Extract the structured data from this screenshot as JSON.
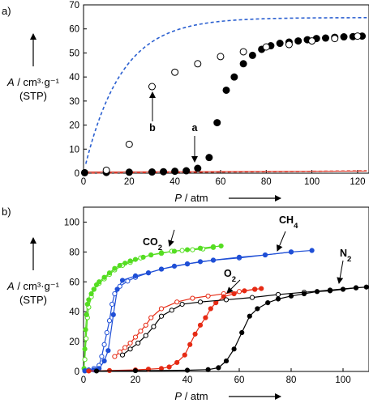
{
  "chart_data": [
    {
      "panel_label": "a)",
      "type": "scatter",
      "xlabel": "P / atm",
      "ylabel": "A / cm³·g⁻¹ (STP)",
      "xlim": [
        0,
        125
      ],
      "ylim": [
        0,
        70
      ],
      "xticks": [
        "0",
        "20",
        "40",
        "60",
        "80",
        "100",
        "120"
      ],
      "yticks": [
        "0",
        "10",
        "20",
        "30",
        "40",
        "50",
        "60",
        "70"
      ],
      "annotations": [
        "a",
        "b"
      ],
      "series": [
        {
          "style": "filled",
          "color": "#000000",
          "annotation": "a",
          "points": [
            [
              0.5,
              0.2
            ],
            [
              10,
              0.3
            ],
            [
              20,
              0.4
            ],
            [
              30,
              0.5
            ],
            [
              35,
              0.6
            ],
            [
              40,
              0.8
            ],
            [
              45,
              1.0
            ],
            [
              50,
              2.0
            ],
            [
              55,
              6.5
            ],
            [
              58.5,
              21
            ],
            [
              62.5,
              34.5
            ],
            [
              66,
              40
            ],
            [
              70,
              45.5
            ],
            [
              74,
              49
            ],
            [
              78,
              51.5
            ],
            [
              82,
              53
            ],
            [
              86,
              54
            ],
            [
              90,
              54.5
            ],
            [
              94,
              55
            ],
            [
              98,
              55.5
            ],
            [
              102,
              56
            ],
            [
              106,
              56.2
            ],
            [
              110,
              56.5
            ],
            [
              114,
              56.7
            ],
            [
              118,
              56.8
            ],
            [
              122,
              57
            ]
          ]
        },
        {
          "style": "open",
          "color": "#000000",
          "annotation": "b",
          "points": [
            [
              10,
              1.2
            ],
            [
              20,
              12
            ],
            [
              30,
              36
            ],
            [
              40,
              42
            ],
            [
              50,
              45.5
            ],
            [
              60,
              48.5
            ],
            [
              70,
              50.5
            ],
            [
              80,
              52.5
            ],
            [
              90,
              53.5
            ],
            [
              100,
              55
            ],
            [
              110,
              56
            ],
            [
              120,
              57
            ]
          ]
        },
        {
          "style": "dashed-fit",
          "color": "#2a5fd0",
          "curve": {
            "qmax": 64.7,
            "k": 0.062,
            "x_from": 1,
            "x_to": 124
          }
        },
        {
          "style": "dashed-fit",
          "color": "#d93020",
          "curve": {
            "slope": 0.008,
            "x_from": 1,
            "x_to": 124
          }
        }
      ]
    },
    {
      "panel_label": "b)",
      "type": "line",
      "xlabel": "P / atm",
      "ylabel": "A / cm³·g⁻¹ (STP)",
      "xlim": [
        0,
        110
      ],
      "ylim": [
        0,
        110
      ],
      "xticks": [
        "0",
        "20",
        "40",
        "60",
        "80",
        "100"
      ],
      "yticks": [
        "0",
        "20",
        "40",
        "60",
        "80",
        "100"
      ],
      "series": [
        {
          "name": "CO2",
          "color": "#55dd22",
          "adsorption": [
            [
              0.2,
              2
            ],
            [
              0.5,
              15
            ],
            [
              0.8,
              28
            ],
            [
              1.2,
              38
            ],
            [
              1.5,
              45
            ],
            [
              2,
              48
            ],
            [
              3,
              52
            ],
            [
              4,
              55
            ],
            [
              5,
              58
            ],
            [
              6,
              60
            ],
            [
              8,
              63
            ],
            [
              10,
              66
            ],
            [
              12,
              69
            ],
            [
              14,
              71
            ],
            [
              16,
              72.5
            ],
            [
              18,
              74
            ],
            [
              20,
              75
            ],
            [
              23,
              76.5
            ],
            [
              26,
              78
            ],
            [
              30,
              79.5
            ],
            [
              35,
              80.5
            ],
            [
              40,
              81.5
            ],
            [
              45,
              82.5
            ],
            [
              50,
              83.5
            ],
            [
              53,
              84
            ]
          ],
          "desorption": [
            [
              50,
              83
            ],
            [
              46,
              82
            ],
            [
              42,
              81.5
            ],
            [
              38,
              81
            ],
            [
              34,
              80.5
            ],
            [
              30,
              79
            ],
            [
              26,
              78
            ],
            [
              22,
              76
            ],
            [
              18,
              73
            ],
            [
              15,
              71
            ],
            [
              12,
              68
            ],
            [
              10,
              65
            ],
            [
              8,
              62
            ],
            [
              6,
              59
            ],
            [
              4,
              55
            ],
            [
              3,
              50
            ],
            [
              2,
              43
            ],
            [
              1.5,
              36
            ],
            [
              1,
              22
            ],
            [
              0.5,
              8
            ]
          ]
        },
        {
          "name": "CH4",
          "color": "#1f4fd6",
          "adsorption": [
            [
              0.5,
              0.3
            ],
            [
              2,
              0.5
            ],
            [
              4,
              1
            ],
            [
              6,
              2
            ],
            [
              8,
              7
            ],
            [
              9.5,
              14
            ],
            [
              11.5,
              38
            ],
            [
              13,
              55
            ],
            [
              15,
              61
            ],
            [
              20,
              64
            ],
            [
              25,
              66
            ],
            [
              30,
              68.5
            ],
            [
              35,
              70.5
            ],
            [
              40,
              72
            ],
            [
              45,
              73.5
            ],
            [
              50,
              74.5
            ],
            [
              60,
              76.5
            ],
            [
              70,
              78
            ],
            [
              80,
              80
            ],
            [
              88,
              81
            ]
          ],
          "desorption": [
            [
              80,
              80
            ],
            [
              70,
              78
            ],
            [
              60,
              76
            ],
            [
              50,
              74.5
            ],
            [
              40,
              72
            ],
            [
              30,
              68.5
            ],
            [
              25,
              66
            ],
            [
              20,
              63
            ],
            [
              17,
              60.5
            ],
            [
              14,
              57
            ],
            [
              12,
              52
            ],
            [
              11,
              45
            ],
            [
              10,
              34
            ],
            [
              9,
              26
            ],
            [
              8,
              18
            ],
            [
              7,
              10
            ],
            [
              6,
              4
            ],
            [
              4,
              2
            ],
            [
              2,
              1
            ],
            [
              0.5,
              0.5
            ]
          ]
        },
        {
          "name": "O2",
          "color": "#e62a14",
          "adsorption": [
            [
              2,
              0.3
            ],
            [
              10,
              0.6
            ],
            [
              20,
              1
            ],
            [
              25,
              1.5
            ],
            [
              30,
              2
            ],
            [
              33,
              3
            ],
            [
              36,
              6
            ],
            [
              39,
              11
            ],
            [
              41,
              18
            ],
            [
              43,
              25
            ],
            [
              45,
              31
            ],
            [
              47,
              36
            ],
            [
              49,
              42
            ],
            [
              51,
              46
            ],
            [
              54,
              50
            ],
            [
              58,
              52
            ],
            [
              62,
              54
            ],
            [
              66,
              55
            ],
            [
              68.5,
              55.5
            ]
          ],
          "desorption": [
            [
              66,
              55
            ],
            [
              60,
              53.5
            ],
            [
              54,
              52
            ],
            [
              48,
              50.5
            ],
            [
              42,
              49
            ],
            [
              36,
              46.5
            ],
            [
              30,
              42
            ],
            [
              26,
              36
            ],
            [
              24,
              31
            ],
            [
              22,
              27
            ],
            [
              20,
              23
            ],
            [
              18,
              19
            ],
            [
              16,
              16
            ],
            [
              14,
              13
            ],
            [
              12,
              10
            ]
          ]
        },
        {
          "name": "N2",
          "color": "#000000",
          "adsorption": [
            [
              5,
              0.3
            ],
            [
              20,
              0.5
            ],
            [
              40,
              0.8
            ],
            [
              48,
              1.2
            ],
            [
              52,
              2.5
            ],
            [
              55,
              7
            ],
            [
              58,
              15
            ],
            [
              61,
              26
            ],
            [
              64,
              37
            ],
            [
              67,
              42
            ],
            [
              71,
              46
            ],
            [
              75,
              48.5
            ],
            [
              80,
              50.5
            ],
            [
              85,
              52
            ],
            [
              90,
              53.5
            ],
            [
              95,
              54
            ],
            [
              100,
              55
            ],
            [
              105,
              56
            ],
            [
              109,
              56.5
            ]
          ],
          "desorption": [
            [
              105,
              56
            ],
            [
              95,
              54.5
            ],
            [
              85,
              53
            ],
            [
              75,
              51.5
            ],
            [
              65,
              49.5
            ],
            [
              55,
              48
            ],
            [
              45,
              46.5
            ],
            [
              38,
              45
            ],
            [
              34,
              41
            ],
            [
              30,
              37
            ],
            [
              27,
              30
            ],
            [
              24,
              24
            ],
            [
              21,
              19
            ],
            [
              18,
              15
            ],
            [
              15,
              11
            ]
          ]
        }
      ]
    }
  ]
}
